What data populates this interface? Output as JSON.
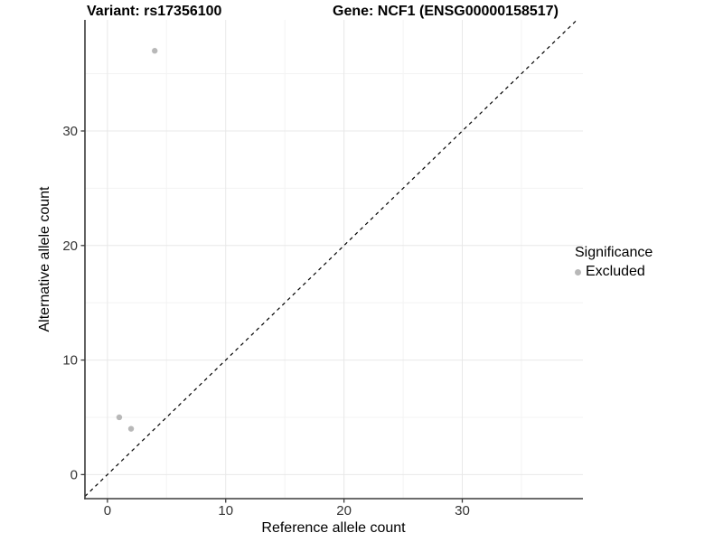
{
  "titles": {
    "variant": "Variant: rs17356100",
    "gene": "Gene: NCF1 (ENSG00000158517)"
  },
  "chart_data": {
    "type": "scatter",
    "title_left": "Variant: rs17356100",
    "title_right": "Gene: NCF1 (ENSG00000158517)",
    "xlabel": "Reference allele count",
    "ylabel": "Alternative allele count",
    "xlim": [
      -1.9,
      40.2
    ],
    "ylim": [
      -2.1,
      39.7
    ],
    "xticks": [
      0,
      10,
      20,
      30
    ],
    "yticks": [
      0,
      10,
      20,
      30
    ],
    "xticks_minor": [
      5,
      15,
      25,
      35
    ],
    "yticks_minor": [
      5,
      15,
      25,
      35
    ],
    "grid": true,
    "series": [
      {
        "name": "Excluded",
        "color": "#b8b8b8",
        "points": [
          [
            1,
            5
          ],
          [
            2,
            4
          ],
          [
            4,
            37
          ]
        ]
      }
    ],
    "reference_line": {
      "type": "identity y=x",
      "style": "dashed",
      "color": "#000000"
    },
    "legend": {
      "title": "Significance",
      "position": "right",
      "items": [
        {
          "label": "Excluded",
          "color": "#b8b8b8"
        }
      ]
    },
    "colors": {
      "background": "#ffffff",
      "grid_major": "#e8e8e8",
      "grid_minor": "#f3f3f3",
      "axis_line": "#3c3c3c",
      "tick_text": "#333333",
      "point": "#b8b8b8"
    }
  }
}
